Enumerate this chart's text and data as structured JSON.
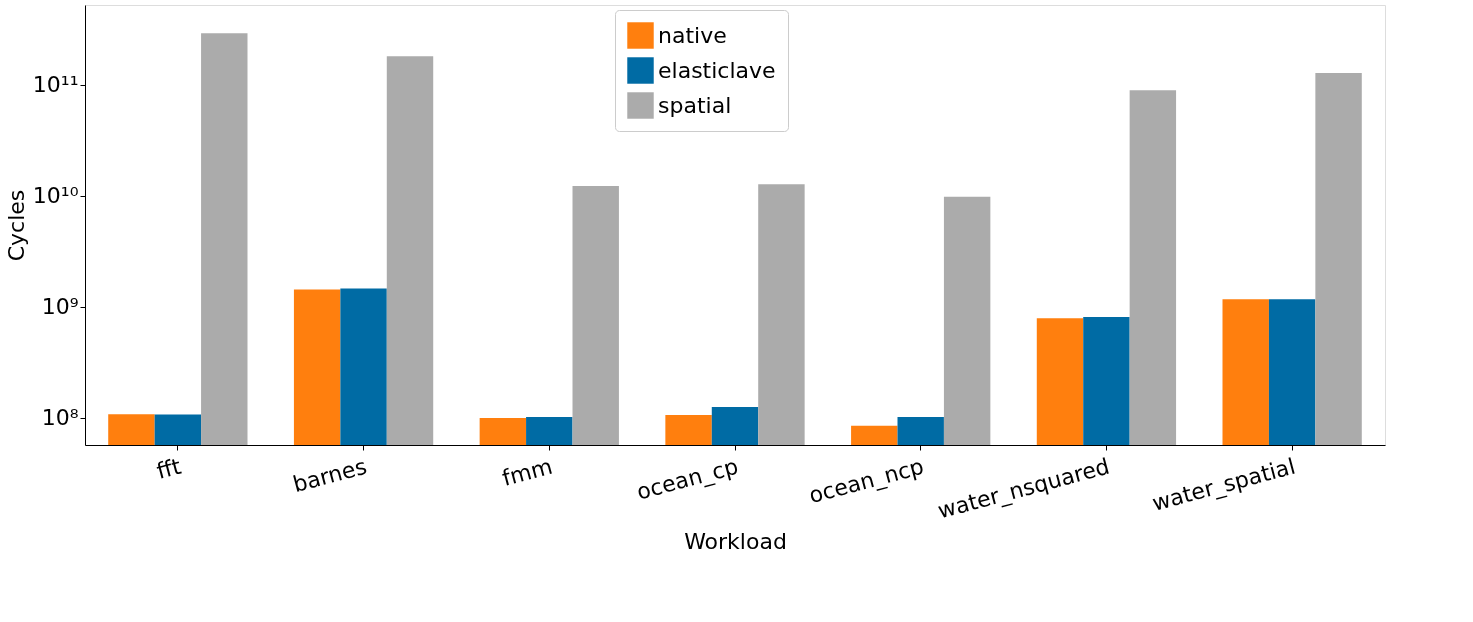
{
  "chart_data": {
    "type": "bar",
    "xlabel": "Workload",
    "ylabel": "Cycles",
    "categories": [
      "fft",
      "barnes",
      "fmm",
      "ocean_cp",
      "ocean_ncp",
      "water_nsquared",
      "water_spatial"
    ],
    "series": [
      {
        "name": "native",
        "color": "#ff7f0e",
        "values": [
          108000000.0,
          1430000000.0,
          100000000.0,
          106000000.0,
          85000000.0,
          790000000.0,
          1170000000.0
        ]
      },
      {
        "name": "elasticlave",
        "color": "#006ba4",
        "values": [
          107000000.0,
          1460000000.0,
          102000000.0,
          125000000.0,
          102000000.0,
          810000000.0,
          1170000000.0
        ]
      },
      {
        "name": "spatial",
        "color": "#ababab",
        "values": [
          290000000000.0,
          180000000000.0,
          12200000000.0,
          12700000000.0,
          9800000000.0,
          89000000000.0,
          127000000000.0
        ]
      }
    ],
    "log": "y",
    "ylim": [
      57000000.0,
      520000000000.0
    ],
    "yticks": [
      {
        "value": 100000000.0,
        "label": "10⁸"
      },
      {
        "value": 1000000000.0,
        "label": "10⁹"
      },
      {
        "value": 10000000000.0,
        "label": "10¹⁰"
      },
      {
        "value": 100000000000.0,
        "label": "10¹¹"
      }
    ],
    "grid": false,
    "legend": "top"
  }
}
